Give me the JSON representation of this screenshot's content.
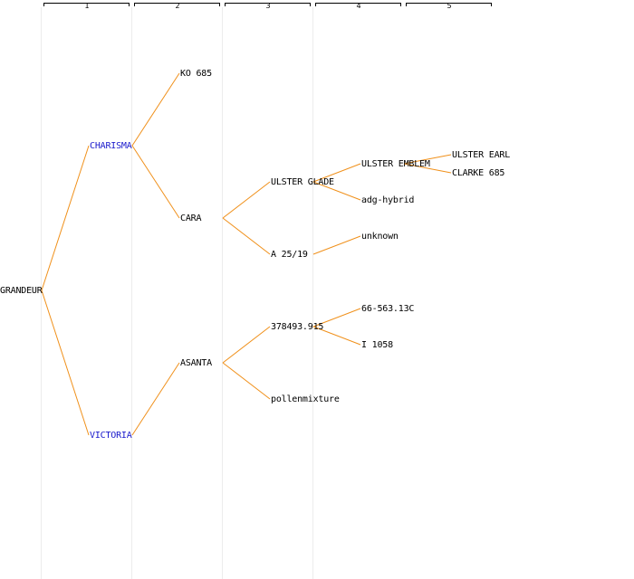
{
  "generations": [
    "1",
    "2",
    "3",
    "4",
    "5"
  ],
  "colors": {
    "line": "#f0901a",
    "column_border": "#ececec",
    "bracket": "#000000",
    "highlight_text": "#1a1acc",
    "text": "#000000"
  },
  "nodes": {
    "grandeur": "GRANDEUR",
    "charisma": "CHARISMA",
    "victoria": "VICTORIA",
    "ko685": "KO 685",
    "cara": "CARA",
    "asanta": "ASANTA",
    "ulster_glade": "ULSTER GLADE",
    "a2519": "A 25/19",
    "n378493": "378493.915",
    "pollenmixture": "pollenmixture",
    "ulster_emblem": "ULSTER EMBLEM",
    "adg_hybrid": "adg-hybrid",
    "unknown": "unknown",
    "n66563": "66-563.13C",
    "i1058": "I 1058",
    "ulster_earl": "ULSTER EARL",
    "clarke685": "CLARKE 685"
  }
}
